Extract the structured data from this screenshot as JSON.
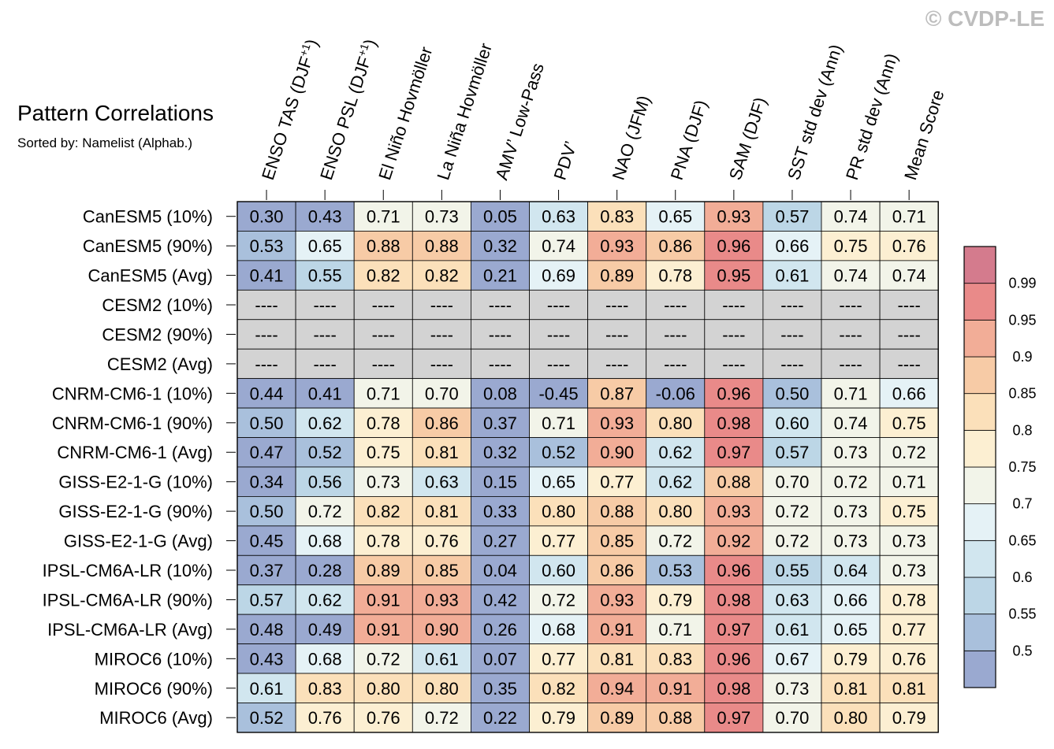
{
  "watermark": "© CVDP-LE",
  "chart_data": {
    "type": "heatmap",
    "title": "Pattern Correlations",
    "subtitle": "Sorted by: Namelist (Alphab.)",
    "columns": [
      {
        "label": "ENSO TAS (DJF",
        "sup": "+1",
        "tail": ")"
      },
      {
        "label": "ENSO PSL (DJF",
        "sup": "+1",
        "tail": ")"
      },
      {
        "label": "El Niño Hovmöller"
      },
      {
        "label": "La Niña Hovmöller"
      },
      {
        "label": "AMV’ Low-Pass"
      },
      {
        "label": "PDV’"
      },
      {
        "label": "NAO (JFM)"
      },
      {
        "label": "PNA (DJF)"
      },
      {
        "label": "SAM (DJF)"
      },
      {
        "label": "SST std dev (Ann)"
      },
      {
        "label": "PR std dev (Ann)"
      },
      {
        "label": "Mean Score"
      }
    ],
    "rows": [
      "CanESM5 (10%)",
      "CanESM5 (90%)",
      "CanESM5 (Avg)",
      "CESM2 (10%)",
      "CESM2 (90%)",
      "CESM2 (Avg)",
      "CNRM-CM6-1 (10%)",
      "CNRM-CM6-1 (90%)",
      "CNRM-CM6-1 (Avg)",
      "GISS-E2-1-G (10%)",
      "GISS-E2-1-G (90%)",
      "GISS-E2-1-G (Avg)",
      "IPSL-CM6A-LR (10%)",
      "IPSL-CM6A-LR (90%)",
      "IPSL-CM6A-LR (Avg)",
      "MIROC6 (10%)",
      "MIROC6 (90%)",
      "MIROC6 (Avg)"
    ],
    "missing_label": "----",
    "values": [
      [
        0.3,
        0.43,
        0.71,
        0.73,
        0.05,
        0.63,
        0.83,
        0.65,
        0.93,
        0.57,
        0.74,
        0.71
      ],
      [
        0.53,
        0.65,
        0.88,
        0.88,
        0.32,
        0.74,
        0.93,
        0.86,
        0.96,
        0.66,
        0.75,
        0.76
      ],
      [
        0.41,
        0.55,
        0.82,
        0.82,
        0.21,
        0.69,
        0.89,
        0.78,
        0.95,
        0.61,
        0.74,
        0.74
      ],
      [
        null,
        null,
        null,
        null,
        null,
        null,
        null,
        null,
        null,
        null,
        null,
        null
      ],
      [
        null,
        null,
        null,
        null,
        null,
        null,
        null,
        null,
        null,
        null,
        null,
        null
      ],
      [
        null,
        null,
        null,
        null,
        null,
        null,
        null,
        null,
        null,
        null,
        null,
        null
      ],
      [
        0.44,
        0.41,
        0.71,
        0.7,
        0.08,
        -0.45,
        0.87,
        -0.06,
        0.96,
        0.5,
        0.71,
        0.66
      ],
      [
        0.5,
        0.62,
        0.78,
        0.86,
        0.37,
        0.71,
        0.93,
        0.8,
        0.98,
        0.6,
        0.74,
        0.75
      ],
      [
        0.47,
        0.52,
        0.75,
        0.81,
        0.32,
        0.52,
        0.9,
        0.62,
        0.97,
        0.57,
        0.73,
        0.72
      ],
      [
        0.34,
        0.56,
        0.73,
        0.63,
        0.15,
        0.65,
        0.77,
        0.62,
        0.88,
        0.7,
        0.72,
        0.71
      ],
      [
        0.5,
        0.72,
        0.82,
        0.81,
        0.33,
        0.8,
        0.88,
        0.8,
        0.93,
        0.72,
        0.73,
        0.75
      ],
      [
        0.45,
        0.68,
        0.78,
        0.76,
        0.27,
        0.77,
        0.85,
        0.72,
        0.92,
        0.72,
        0.73,
        0.73
      ],
      [
        0.37,
        0.28,
        0.89,
        0.85,
        0.04,
        0.6,
        0.86,
        0.53,
        0.96,
        0.55,
        0.64,
        0.73
      ],
      [
        0.57,
        0.62,
        0.91,
        0.93,
        0.42,
        0.72,
        0.93,
        0.79,
        0.98,
        0.63,
        0.66,
        0.78
      ],
      [
        0.48,
        0.49,
        0.91,
        0.9,
        0.26,
        0.68,
        0.91,
        0.71,
        0.97,
        0.61,
        0.65,
        0.77
      ],
      [
        0.43,
        0.68,
        0.72,
        0.61,
        0.07,
        0.77,
        0.81,
        0.83,
        0.96,
        0.67,
        0.79,
        0.76
      ],
      [
        0.61,
        0.83,
        0.8,
        0.8,
        0.35,
        0.82,
        0.94,
        0.91,
        0.98,
        0.73,
        0.81,
        0.81
      ],
      [
        0.52,
        0.76,
        0.76,
        0.72,
        0.22,
        0.79,
        0.89,
        0.88,
        0.97,
        0.7,
        0.8,
        0.79
      ]
    ],
    "colorbar": {
      "levels": [
        0.5,
        0.55,
        0.6,
        0.65,
        0.7,
        0.75,
        0.8,
        0.85,
        0.9,
        0.95,
        0.99
      ],
      "tick_labels": [
        "0.5",
        "0.55",
        "0.6",
        "0.65",
        "0.7",
        "0.75",
        "0.8",
        "0.85",
        "0.9",
        "0.95",
        "0.99"
      ],
      "colors": [
        "#9aa9d0",
        "#a9c0dc",
        "#bcd6e6",
        "#d1e6ef",
        "#e5f2f6",
        "#f2f4e9",
        "#fcefd2",
        "#fbe0ba",
        "#f7cba6",
        "#f2ad97",
        "#e98a89",
        "#d47b8d"
      ],
      "missing_color": "#d3d3d3"
    }
  }
}
